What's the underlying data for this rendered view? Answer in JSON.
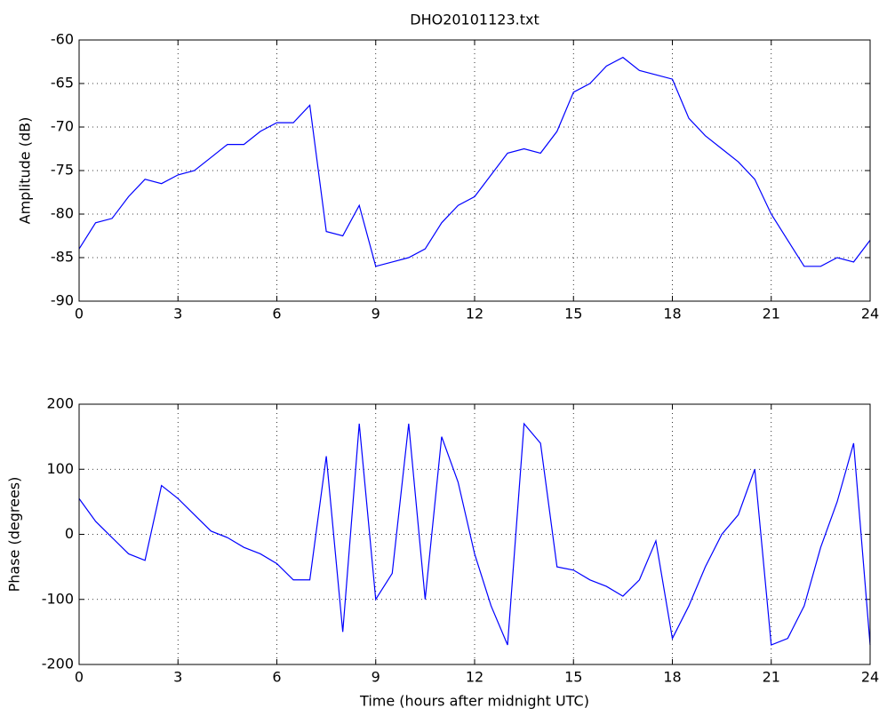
{
  "chart_data": [
    {
      "type": "line",
      "title": "DHO20101123.txt",
      "ylabel": "Amplitude (dB)",
      "x": [
        0,
        0.5,
        1,
        1.5,
        2,
        2.5,
        3,
        3.5,
        4,
        4.5,
        5,
        5.5,
        6,
        6.5,
        7,
        7.5,
        8,
        8.5,
        9,
        9.5,
        10,
        10.5,
        11,
        11.5,
        12,
        12.5,
        13,
        13.5,
        14,
        14.5,
        15,
        15.5,
        16,
        16.5,
        17,
        17.5,
        18,
        18.5,
        19,
        19.5,
        20,
        20.5,
        21,
        21.5,
        22,
        22.5,
        23,
        23.5,
        24
      ],
      "series": [
        {
          "name": "Amplitude",
          "color": "#0000ff",
          "values": [
            -84,
            -81,
            -80.5,
            -78,
            -76,
            -76.5,
            -75.5,
            -75,
            -73.5,
            -72,
            -72,
            -70.5,
            -69.5,
            -69.5,
            -67.5,
            -82,
            -82.5,
            -79,
            -86,
            -85.5,
            -85,
            -84,
            -81,
            -79,
            -78,
            -75.5,
            -73,
            -72.5,
            -73,
            -70.5,
            -66,
            -65,
            -63,
            -62,
            -63.5,
            -64,
            -64.5,
            -69,
            -71,
            -72.5,
            -74,
            -76,
            -80,
            -83,
            -86,
            -86,
            -85,
            -85.5,
            -83
          ]
        }
      ],
      "xlim": [
        0,
        24
      ],
      "xticks": [
        0,
        3,
        6,
        9,
        12,
        15,
        18,
        21,
        24
      ],
      "ylim": [
        -90,
        -60
      ],
      "yticks": [
        -90,
        -85,
        -80,
        -75,
        -70,
        -65,
        -60
      ],
      "grid": true
    },
    {
      "type": "line",
      "xlabel": "Time (hours after midnight UTC)",
      "ylabel": "Phase (degrees)",
      "x": [
        0,
        0.5,
        1,
        1.5,
        2,
        2.5,
        3,
        3.5,
        4,
        4.5,
        5,
        5.5,
        6,
        6.5,
        7,
        7.5,
        8,
        8.5,
        9,
        9.5,
        10,
        10.5,
        11,
        11.5,
        12,
        12.5,
        13,
        13.5,
        14,
        14.5,
        15,
        15.5,
        16,
        16.5,
        17,
        17.5,
        18,
        18.5,
        19,
        19.5,
        20,
        20.5,
        21,
        21.5,
        22,
        22.5,
        23,
        23.5,
        24
      ],
      "series": [
        {
          "name": "Phase",
          "color": "#0000ff",
          "values": [
            55,
            20,
            -5,
            -30,
            -40,
            75,
            55,
            30,
            5,
            -5,
            -20,
            -30,
            -45,
            -70,
            -70,
            120,
            -150,
            170,
            -100,
            -60,
            170,
            -100,
            150,
            80,
            -30,
            -110,
            -170,
            170,
            140,
            -50,
            -55,
            -70,
            -80,
            -95,
            -70,
            -10,
            -160,
            -110,
            -50,
            0,
            30,
            100,
            -170,
            -160,
            -110,
            -20,
            50,
            140,
            -170
          ]
        }
      ],
      "xlim": [
        0,
        24
      ],
      "xticks": [
        0,
        3,
        6,
        9,
        12,
        15,
        18,
        21,
        24
      ],
      "ylim": [
        -200,
        200
      ],
      "yticks": [
        -200,
        -100,
        0,
        100,
        200
      ],
      "grid": true
    }
  ]
}
